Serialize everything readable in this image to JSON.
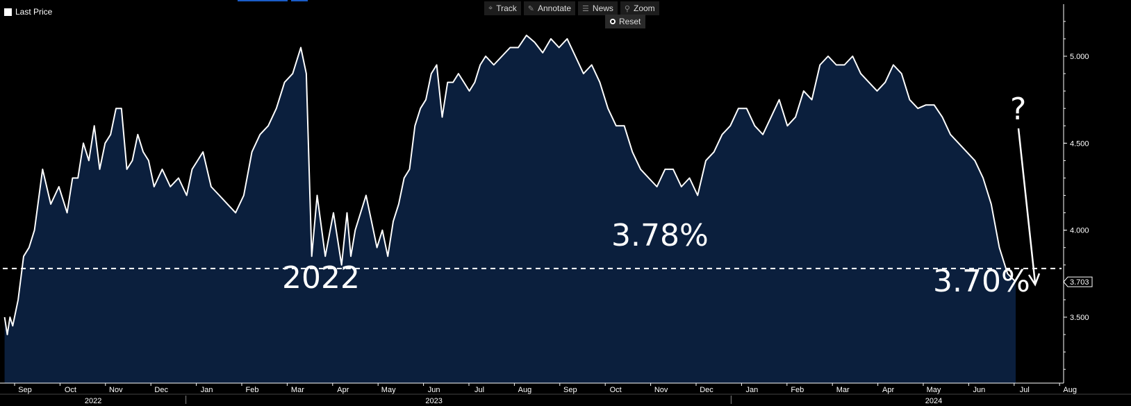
{
  "legend": {
    "label": "Last Price"
  },
  "toolbar": {
    "items": [
      {
        "label": "Track",
        "icon": "crosshair-icon"
      },
      {
        "label": "Annotate",
        "icon": "pencil-icon"
      },
      {
        "label": "News",
        "icon": "news-icon"
      },
      {
        "label": "Zoom",
        "icon": "magnifier-icon"
      }
    ],
    "reset_label": "Reset"
  },
  "colors": {
    "background": "#000000",
    "area_fill": "#0b1f3d",
    "line": "#ffffff",
    "axis": "#ffffff",
    "accent": "#1a5cc8"
  },
  "chart_data": {
    "type": "area",
    "ylim": [
      3.0,
      5.2
    ],
    "yticks": [
      3.5,
      4.0,
      4.5,
      5.0
    ],
    "ytick_labels": [
      "3.500",
      "4.000",
      "4.500",
      "5.000"
    ],
    "last_value_label": "3.703",
    "grid": false,
    "month_ticks": [
      "Sep",
      "Oct",
      "Nov",
      "Dec",
      "Jan",
      "Feb",
      "Mar",
      "Apr",
      "May",
      "Jun",
      "Jul",
      "Aug",
      "Sep",
      "Oct",
      "Nov",
      "Dec",
      "Jan",
      "Feb",
      "Mar",
      "Apr",
      "May",
      "Jun",
      "Jul",
      "Aug"
    ],
    "year_labels": [
      {
        "label": "2022",
        "month_index": 1.5
      },
      {
        "label": "2023",
        "month_index": 9
      },
      {
        "label": "2024",
        "month_index": 20
      }
    ],
    "reference_line": {
      "value": 3.78
    },
    "annotations": [
      {
        "text": "3.78%",
        "role": "reference"
      },
      {
        "text": "2022",
        "role": "period"
      },
      {
        "text": "3.70%",
        "role": "last"
      },
      {
        "text": "?",
        "role": "question"
      }
    ],
    "series": [
      {
        "month_pos": [
          -0.45,
          -0.4,
          -0.35,
          -0.3,
          -0.2,
          -0.1,
          0,
          0.1,
          0.25,
          0.4,
          0.55,
          0.7,
          0.8,
          0.9,
          1.0,
          1.1,
          1.2,
          1.3,
          1.4,
          1.5,
          1.6,
          1.7,
          1.8,
          1.9,
          2.0,
          2.1,
          2.2,
          2.3,
          2.45,
          2.6,
          2.75,
          2.9,
          3.0,
          3.1,
          3.2,
          3.35,
          3.5,
          3.65,
          3.8,
          3.95,
          4.1,
          4.25,
          4.4,
          4.55,
          4.7,
          4.85,
          5.0,
          5.1,
          5.2,
          5.3,
          5.45,
          5.6,
          5.75,
          5.85,
          5.92,
          6.0,
          6.1,
          6.2,
          6.3,
          6.4,
          6.5,
          6.6,
          6.7,
          6.8,
          6.9,
          7.0,
          7.1,
          7.2,
          7.3,
          7.4,
          7.5,
          7.6,
          7.7,
          7.8,
          7.9,
          8.0,
          8.1,
          8.2,
          8.3,
          8.4,
          8.55,
          8.7,
          8.85,
          9.0,
          9.15,
          9.3,
          9.45,
          9.6,
          9.75,
          9.9,
          10.05,
          10.2,
          10.35,
          10.5,
          10.65,
          10.8,
          10.95,
          11.1,
          11.25,
          11.4,
          11.55,
          11.7,
          11.85,
          12.0,
          12.15,
          12.3,
          12.45,
          12.6,
          12.75,
          12.9,
          13.05,
          13.2,
          13.35,
          13.5,
          13.65,
          13.8,
          13.95,
          14.1,
          14.25,
          14.4,
          14.55,
          14.7,
          14.85,
          15.0,
          15.15,
          15.3,
          15.45,
          15.6,
          15.75,
          15.9,
          16.05,
          16.2,
          16.35,
          16.5,
          16.65,
          16.8,
          16.95,
          17.1,
          17.25,
          17.4,
          17.55,
          17.7,
          17.85,
          18.0,
          18.15,
          18.3,
          18.45,
          18.6,
          18.75,
          18.9,
          19.05,
          19.2,
          19.35,
          19.5,
          19.65,
          19.8,
          19.95,
          20.1,
          20.25,
          20.4,
          20.55,
          20.7,
          20.85,
          21.0,
          21.15,
          21.3,
          21.45,
          21.6,
          21.75,
          21.9,
          22.05,
          22.2,
          22.35,
          22.5,
          22.6,
          22.65,
          22.7,
          22.75
        ],
        "values": [
          3.5,
          3.4,
          3.5,
          3.45,
          3.6,
          3.85,
          3.9,
          4.0,
          4.35,
          4.15,
          4.25,
          4.1,
          4.3,
          4.3,
          4.5,
          4.4,
          4.6,
          4.35,
          4.5,
          4.55,
          4.7,
          4.7,
          4.35,
          4.4,
          4.55,
          4.45,
          4.4,
          4.25,
          4.35,
          4.25,
          4.3,
          4.2,
          4.35,
          4.4,
          4.45,
          4.25,
          4.2,
          4.15,
          4.1,
          4.2,
          4.45,
          4.55,
          4.6,
          4.7,
          4.85,
          4.9,
          5.05,
          4.9,
          3.85,
          4.2,
          3.85,
          4.1,
          3.8,
          4.1,
          3.85,
          4.0,
          4.1,
          4.2,
          4.05,
          3.9,
          4.0,
          3.85,
          4.05,
          4.15,
          4.3,
          4.35,
          4.6,
          4.7,
          4.75,
          4.9,
          4.95,
          4.65,
          4.85,
          4.85,
          4.9,
          4.85,
          4.8,
          4.85,
          4.95,
          5.0,
          4.95,
          5.0,
          5.05,
          5.05,
          5.12,
          5.08,
          5.02,
          5.1,
          5.05,
          5.1,
          5.0,
          4.9,
          4.95,
          4.85,
          4.7,
          4.6,
          4.6,
          4.45,
          4.35,
          4.3,
          4.25,
          4.35,
          4.35,
          4.25,
          4.3,
          4.2,
          4.4,
          4.45,
          4.55,
          4.6,
          4.7,
          4.7,
          4.6,
          4.55,
          4.65,
          4.75,
          4.6,
          4.65,
          4.8,
          4.75,
          4.95,
          5.0,
          4.95,
          4.95,
          5.0,
          4.9,
          4.85,
          4.8,
          4.85,
          4.95,
          4.9,
          4.75,
          4.7,
          4.72,
          4.72,
          4.65,
          4.55,
          4.5,
          4.45,
          4.4,
          4.3,
          4.15,
          3.9,
          3.75,
          3.703,
          3.703,
          3.703,
          3.703,
          3.703,
          3.703,
          3.703,
          3.703,
          3.703,
          3.703,
          3.703,
          3.703,
          3.703,
          3.703,
          3.703,
          3.703,
          3.703,
          3.703,
          3.703,
          3.703,
          3.703,
          3.703,
          3.703,
          3.703,
          3.703,
          3.703,
          3.703,
          3.703,
          3.703,
          3.703,
          3.703,
          3.703,
          3.703,
          3.703,
          3.703,
          3.703,
          3.703,
          3.703
        ]
      }
    ]
  }
}
